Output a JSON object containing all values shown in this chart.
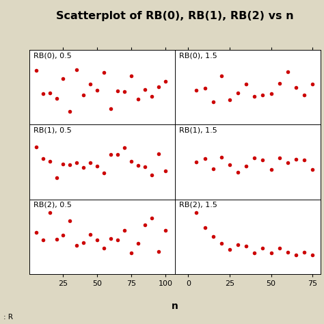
{
  "title": "Scatterplot of RB(0), RB(1), RB(2) vs n",
  "xlabel": "n",
  "bg_color": "#ddd8c3",
  "panel_bg": "#ffffff",
  "dot_color": "#cc0000",
  "panel_labels": [
    [
      "RB(0), 0.5",
      "RB(0), 1.5"
    ],
    [
      "RB(1), 0.5",
      "RB(1), 1.5"
    ],
    [
      "RB(2), 0.5",
      "RB(2), 1.5"
    ]
  ],
  "title_fontsize": 11.5,
  "label_fontsize": 8,
  "tick_fontsize": 8
}
